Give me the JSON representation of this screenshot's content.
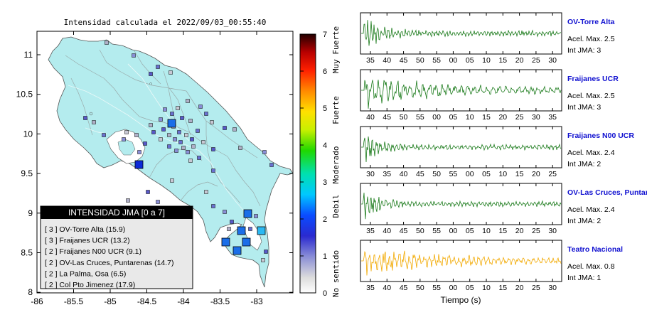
{
  "map": {
    "title": "Intensidad calculada el 2022/09/03_00:55:40",
    "x_ticks": [
      "-86",
      "-85.5",
      "-85",
      "-84.5",
      "-84",
      "-83.5",
      "-83"
    ],
    "y_ticks": [
      "11",
      "10.5",
      "10",
      "9.5",
      "9",
      "8.5",
      "8"
    ],
    "land_color": "#b4ecee",
    "legend": {
      "title": "INTENSIDAD JMA [0 a 7]",
      "items": [
        "[ 3 ]  OV-Torre Alta (15.9)",
        "[ 3 ]  Fraijanes UCR (13.2)",
        "[ 2 ]  Fraijanes N00 UCR (9.1)",
        "[ 2 ]  OV-Las Cruces, Puntarenas (14.7)",
        "[ 2 ]  La Palma, Osa (6.5)",
        "[ 2 ]  Col Pto Jimenez (17.9)"
      ]
    }
  },
  "colorbar": {
    "ticks": [
      "0",
      "1",
      "2",
      "3",
      "4",
      "5",
      "6",
      "7"
    ],
    "categories": [
      "No sentido",
      "Debil",
      "Moderado",
      "Fuerte",
      "Muy Fuerte"
    ]
  },
  "panels": [
    {
      "station": "OV-Torre Alta",
      "acel": "Acel. Max. 2.5",
      "jma": "Int JMA: 3",
      "color": "#1a7a1a",
      "ticks": [
        "35",
        "40",
        "45",
        "50",
        "55",
        "00",
        "05",
        "10",
        "15",
        "20",
        "25",
        "30"
      ]
    },
    {
      "station": "Fraijanes UCR",
      "acel": "Acel. Max. 2.5",
      "jma": "Int JMA: 3",
      "color": "#1a7a1a",
      "ticks": [
        "40",
        "45",
        "50",
        "55",
        "00",
        "05",
        "10",
        "15",
        "20",
        "25",
        "30",
        "35"
      ]
    },
    {
      "station": "Fraijanes N00 UCR",
      "acel": "Acel. Max. 2.4",
      "jma": "Int JMA: 2",
      "color": "#1a7a1a",
      "ticks": [
        "30",
        "35",
        "40",
        "45",
        "50",
        "55",
        "00",
        "05",
        "10",
        "15",
        "20",
        "25"
      ]
    },
    {
      "station": "OV-Las Cruces, Puntar",
      "acel": "Acel. Max. 2.4",
      "jma": "Int JMA: 2",
      "color": "#1a7a1a",
      "ticks": [
        "35",
        "40",
        "45",
        "50",
        "55",
        "00",
        "05",
        "10",
        "15",
        "20",
        "25",
        "30"
      ]
    },
    {
      "station": "Teatro Nacional",
      "acel": "Acel. Max. 0.8",
      "jma": "Int JMA: 1",
      "color": "#f2a900",
      "ticks": [
        "35",
        "40",
        "45",
        "50",
        "55",
        "00",
        "05",
        "10",
        "15",
        "20",
        "25",
        "30"
      ]
    }
  ],
  "xlabel": "Tiempo (s)"
}
